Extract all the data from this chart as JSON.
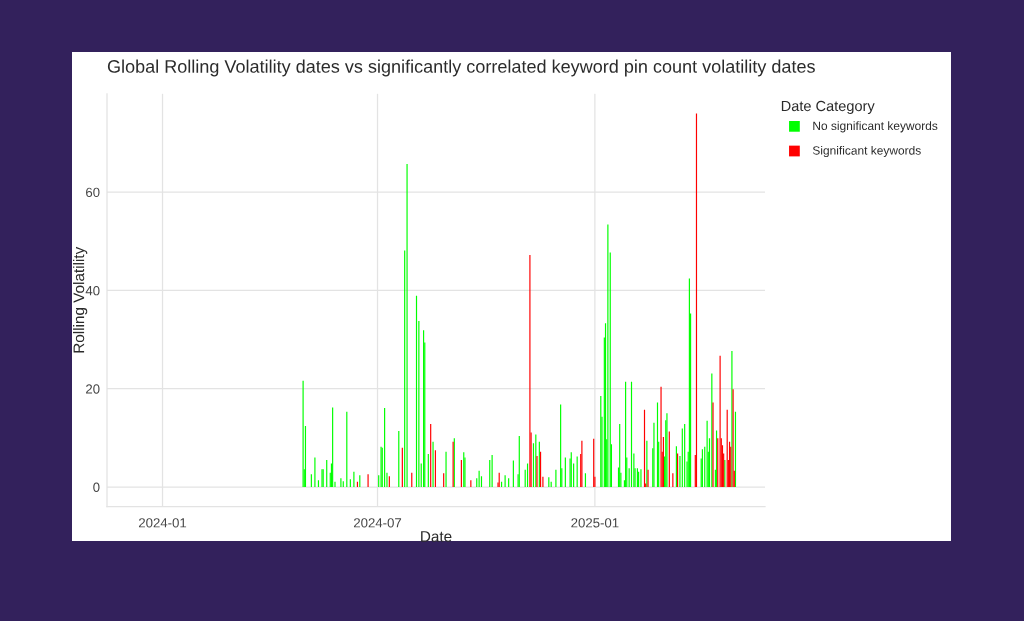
{
  "chart_data": {
    "type": "bar",
    "title": "Global Rolling Volatility dates vs significantly correlated keyword pin count volatility dates",
    "xlabel": "Date",
    "ylabel": "Rolling Volatility",
    "legend_title": "Date Category",
    "series": [
      {
        "name": "No significant keywords",
        "color": "#00ff00",
        "x": [
          "2024-04-29",
          "2024-04-30",
          "2024-05-01",
          "2024-05-06",
          "2024-05-09",
          "2024-05-12",
          "2024-05-15",
          "2024-05-16",
          "2024-05-19",
          "2024-05-22",
          "2024-05-23",
          "2024-05-24",
          "2024-05-26",
          "2024-05-31",
          "2024-06-02",
          "2024-06-05",
          "2024-06-08",
          "2024-06-11",
          "2024-06-16",
          "2024-07-02",
          "2024-07-04",
          "2024-07-05",
          "2024-07-07",
          "2024-07-09",
          "2024-07-19",
          "2024-07-24",
          "2024-07-26",
          "2024-08-03",
          "2024-08-05",
          "2024-08-07",
          "2024-08-09",
          "2024-08-10",
          "2024-08-13",
          "2024-08-17",
          "2024-08-28",
          "2024-09-04",
          "2024-09-12",
          "2024-09-13",
          "2024-09-23",
          "2024-09-25",
          "2024-09-27",
          "2024-10-04",
          "2024-10-06",
          "2024-10-14",
          "2024-10-17",
          "2024-10-20",
          "2024-10-24",
          "2024-10-28",
          "2024-10-29",
          "2024-11-03",
          "2024-11-05",
          "2024-11-10",
          "2024-11-12",
          "2024-11-15",
          "2024-11-23",
          "2024-11-25",
          "2024-11-29",
          "2024-12-03",
          "2024-12-04",
          "2024-12-07",
          "2024-12-11",
          "2024-12-12",
          "2024-12-14",
          "2024-12-17",
          "2024-12-24",
          "2025-01-06",
          "2025-01-07",
          "2025-01-09",
          "2025-01-10",
          "2025-01-11",
          "2025-01-12",
          "2025-01-14",
          "2025-01-15",
          "2025-01-21",
          "2025-01-22",
          "2025-01-23",
          "2025-01-26",
          "2025-01-27",
          "2025-01-28",
          "2025-01-30",
          "2025-02-01",
          "2025-02-03",
          "2025-02-04",
          "2025-02-06",
          "2025-02-07",
          "2025-02-09",
          "2025-02-14",
          "2025-02-19",
          "2025-02-20",
          "2025-02-23",
          "2025-02-24",
          "2025-03-01",
          "2025-03-02",
          "2025-03-03",
          "2025-03-11",
          "2025-03-14",
          "2025-03-16",
          "2025-03-18",
          "2025-03-20",
          "2025-03-21",
          "2025-03-22",
          "2025-03-23",
          "2025-04-01",
          "2025-04-02",
          "2025-04-04",
          "2025-04-06",
          "2025-04-07",
          "2025-04-08",
          "2025-04-10",
          "2025-04-13",
          "2025-04-14",
          "2025-04-21",
          "2025-04-27",
          "2025-04-30"
        ],
        "values": [
          21.6,
          3.6,
          12.4,
          2.6,
          6.0,
          1.4,
          3.6,
          3.6,
          5.5,
          2.9,
          4.8,
          16.2,
          1.1,
          1.8,
          1.2,
          15.3,
          1.6,
          3.1,
          2.4,
          2.4,
          8.2,
          8.0,
          16.1,
          2.9,
          11.4,
          48.1,
          65.7,
          38.9,
          33.8,
          4.8,
          31.9,
          29.4,
          6.7,
          9.2,
          7.2,
          9.9,
          7.1,
          6.0,
          1.8,
          3.3,
          2.2,
          5.5,
          6.5,
          1.1,
          2.4,
          1.8,
          5.4,
          2.6,
          10.4,
          3.5,
          4.8,
          8.9,
          10.7,
          9.2,
          2.0,
          1.1,
          3.5,
          16.8,
          3.8,
          6.0,
          5.8,
          7.1,
          4.8,
          6.2,
          2.8,
          18.5,
          14.3,
          30.4,
          33.3,
          9.7,
          53.4,
          47.7,
          8.7,
          4.0,
          12.8,
          2.9,
          1.4,
          21.4,
          6.0,
          3.8,
          21.4,
          6.8,
          3.8,
          3.8,
          3.1,
          3.6,
          9.4,
          7.9,
          13.1,
          17.2,
          9.2,
          6.2,
          13.6,
          15.0,
          8.3,
          6.3,
          11.9,
          12.8,
          5.2,
          7.2,
          42.4,
          35.3,
          5.8,
          7.7,
          8.2,
          13.5,
          7.2,
          9.9,
          23.1,
          3.5,
          11.5,
          5.5,
          27.7,
          15.3
        ]
      },
      {
        "name": "Significant keywords",
        "color": "#ff0000",
        "x": [
          "2024-06-14",
          "2024-06-23",
          "2024-07-11",
          "2024-07-22",
          "2024-07-30",
          "2024-08-15",
          "2024-08-19",
          "2024-08-26",
          "2024-09-03",
          "2024-09-10",
          "2024-09-18",
          "2024-10-11",
          "2024-10-12",
          "2024-11-07",
          "2024-11-08",
          "2024-11-13",
          "2024-11-16",
          "2024-11-18",
          "2024-12-20",
          "2024-12-21",
          "2024-12-31",
          "2025-01-01",
          "2025-02-12",
          "2025-02-13",
          "2025-02-15",
          "2025-02-26",
          "2025-02-27",
          "2025-02-28",
          "2025-03-05",
          "2025-03-08",
          "2025-03-12",
          "2025-03-27",
          "2025-03-28",
          "2025-04-11",
          "2025-04-15",
          "2025-04-17",
          "2025-04-18",
          "2025-04-19",
          "2025-04-20",
          "2025-04-23",
          "2025-04-24",
          "2025-04-25",
          "2025-04-26",
          "2025-04-28",
          "2025-04-29"
        ],
        "values": [
          1.1,
          2.6,
          2.2,
          8.0,
          2.9,
          12.8,
          7.5,
          2.8,
          9.2,
          5.5,
          1.4,
          0.9,
          2.9,
          47.2,
          11.1,
          6.3,
          7.2,
          2.1,
          6.7,
          9.4,
          9.8,
          2.1,
          15.7,
          0.7,
          3.5,
          20.4,
          7.2,
          10.2,
          11.3,
          2.8,
          6.8,
          6.5,
          76.0,
          17.2,
          9.9,
          26.7,
          9.9,
          8.5,
          6.8,
          15.7,
          5.5,
          9.2,
          8.2,
          19.9,
          3.3
        ]
      }
    ],
    "xlim": [
      "2023-11-15",
      "2025-05-25"
    ],
    "xticks": [
      "2024-01",
      "2024-07",
      "2025-01"
    ],
    "ylim": [
      -4,
      80
    ],
    "yticks": [
      0,
      20,
      40,
      60
    ],
    "grid": true,
    "legend": "top right"
  }
}
